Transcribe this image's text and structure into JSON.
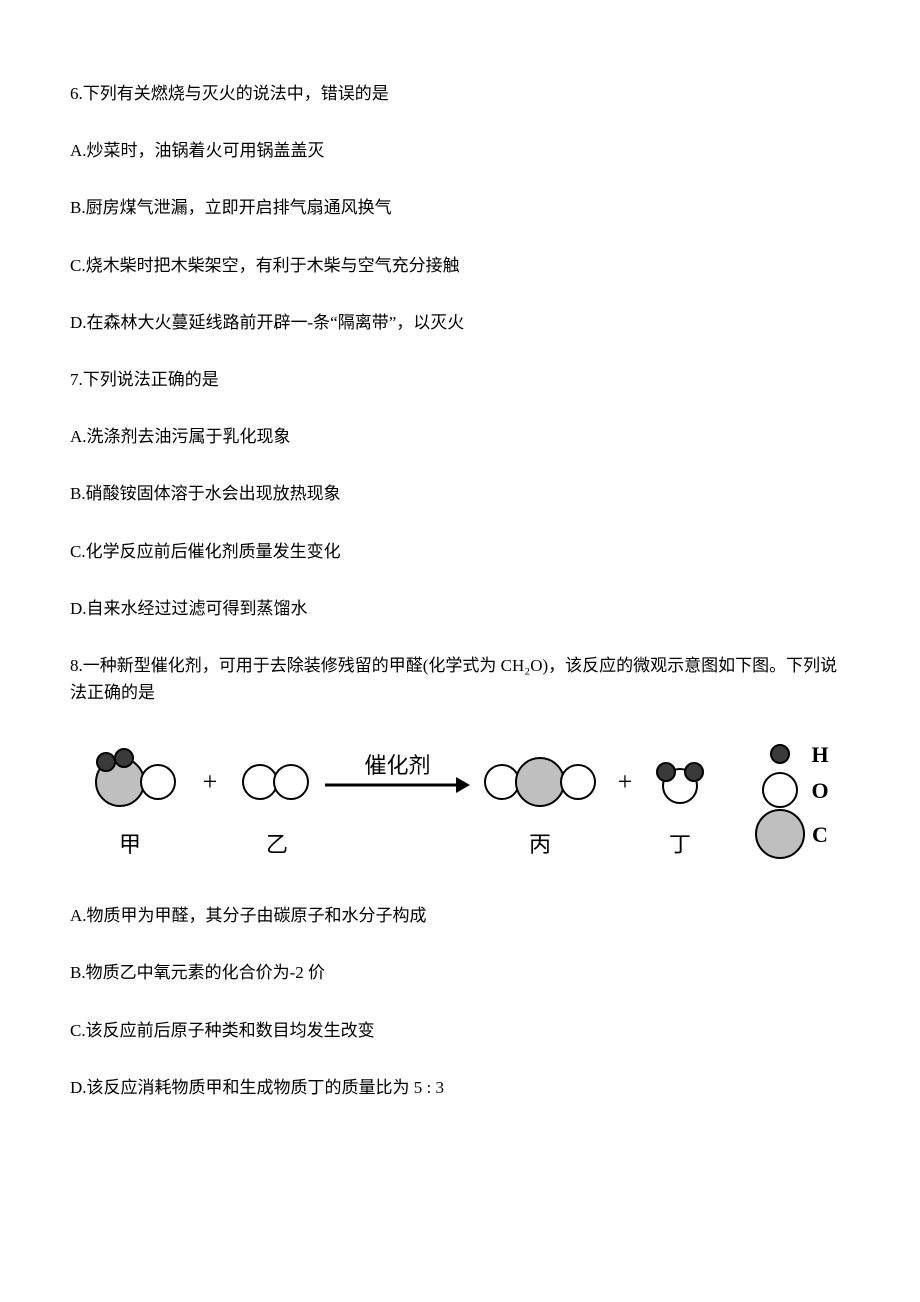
{
  "q6": {
    "stem": "6.下列有关燃烧与灭火的说法中，错误的是",
    "A": "A.炒菜时，油锅着火可用锅盖盖灭",
    "B": "B.厨房煤气泄漏，立即开启排气扇通风换气",
    "C": "C.烧木柴时把木柴架空，有利于木柴与空气充分接触",
    "D": "D.在森林大火蔓延线路前开辟一-条“隔离带”，以灭火"
  },
  "q7": {
    "stem": "7.下列说法正确的是",
    "A": "A.洗涤剂去油污属于乳化现象",
    "B": "B.硝酸铵固体溶于水会出现放热现象",
    "C": "C.化学反应前后催化剂质量发生变化",
    "D": "D.自来水经过过滤可得到蒸馏水"
  },
  "q8": {
    "stem": "8.一种新型催化剂，可用于去除装修残留的甲醛(化学式为 CH₂O)，该反应的微观示意图如下图。下列说法正确的是",
    "A": "A.物质甲为甲醛，其分子由碳原子和水分子构成",
    "B": "B.物质乙中氧元素的化合价为-2 价",
    "C": "C.该反应前后原子种类和数目均发生改变",
    "D": "D.该反应消耗物质甲和生成物质丁的质量比为 5 : 3",
    "diagram": {
      "arrow_label": "催化剂",
      "jia": "甲",
      "yi": "乙",
      "bing": "丙",
      "ding": "丁",
      "legend_H": "H",
      "legend_O": "O",
      "legend_C": "C",
      "colors": {
        "H_fill": "#3a3a3a",
        "O_fill": "#ffffff",
        "C_fill": "#bfbfbf",
        "stroke": "#000000",
        "arrow": "#000000",
        "text": "#000000"
      },
      "radii": {
        "H": 9,
        "O": 17,
        "C": 24
      },
      "font_label": 22,
      "font_arrow": 22,
      "font_legend": 22,
      "stroke_width": 2
    }
  }
}
